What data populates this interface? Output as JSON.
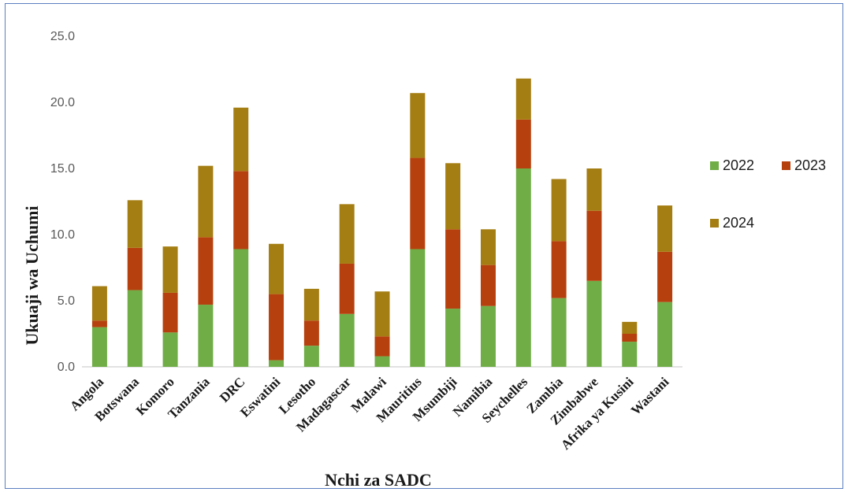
{
  "chart_data": {
    "type": "bar",
    "stacked": true,
    "title": "",
    "xlabel": "Nchi za SADC",
    "ylabel": "Ukuaji wa Uchumi",
    "ylim": [
      0,
      25
    ],
    "yticks": [
      "0.0",
      "5.0",
      "10.0",
      "15.0",
      "20.0",
      "25.0"
    ],
    "grid": false,
    "legend_position": "right",
    "categories": [
      "Angola",
      "Botswana",
      "Komoro",
      "Tanzania",
      "DRC",
      "Eswatini",
      "Lesotho",
      "Madagascar",
      "Malawi",
      "Mauritius",
      "Msumbiji",
      "Namibia",
      "Seychelles",
      "Zambia",
      "Zimbabwe",
      "Afrika ya Kusini",
      "Wastani"
    ],
    "series": [
      {
        "name": "2022",
        "color": "#70ad47",
        "values": [
          3.0,
          5.8,
          2.6,
          4.7,
          8.9,
          0.5,
          1.6,
          4.0,
          0.8,
          8.9,
          4.4,
          4.6,
          15.0,
          5.2,
          6.5,
          1.9,
          4.9
        ]
      },
      {
        "name": "2023",
        "color": "#b7410e",
        "values": [
          0.5,
          3.2,
          3.0,
          5.1,
          5.9,
          5.0,
          1.9,
          3.8,
          1.5,
          6.9,
          6.0,
          3.1,
          3.7,
          4.3,
          5.3,
          0.6,
          3.8
        ]
      },
      {
        "name": "2024",
        "color": "#a57e13",
        "values": [
          2.6,
          3.6,
          3.5,
          5.4,
          4.8,
          3.8,
          2.4,
          4.5,
          3.4,
          4.9,
          5.0,
          2.7,
          3.1,
          4.7,
          3.2,
          0.9,
          3.5
        ]
      }
    ]
  }
}
